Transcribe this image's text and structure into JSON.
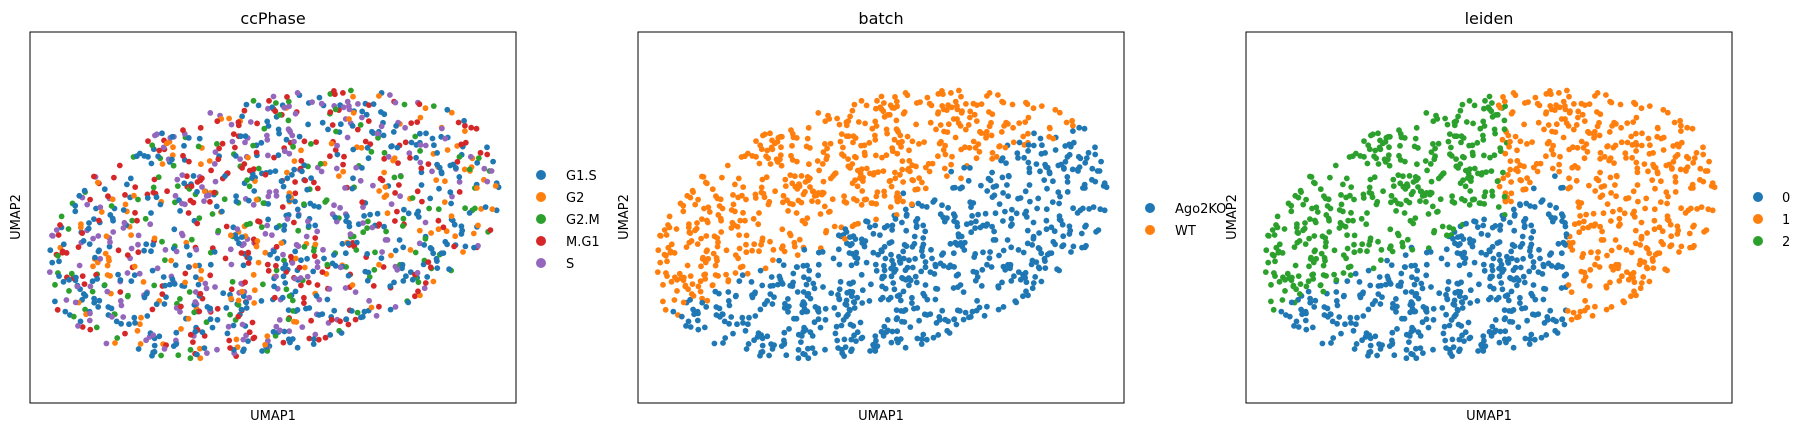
{
  "chart_data": [
    {
      "type": "scatter",
      "title": "ccPhase",
      "xlabel": "UMAP1",
      "ylabel": "UMAP2",
      "grid": false,
      "ticks": false,
      "legend_position": "right",
      "series": [
        {
          "name": "G1.S",
          "color": "#1f77b4"
        },
        {
          "name": "G2",
          "color": "#ff7f0e"
        },
        {
          "name": "G2.M",
          "color": "#2ca02c"
        },
        {
          "name": "M.G1",
          "color": "#d62728"
        },
        {
          "name": "S",
          "color": "#9467bd"
        }
      ],
      "point_assignment": "mixed",
      "mix_weights": [
        0.36,
        0.12,
        0.14,
        0.2,
        0.18
      ]
    },
    {
      "type": "scatter",
      "title": "batch",
      "xlabel": "UMAP1",
      "ylabel": "UMAP2",
      "grid": false,
      "ticks": false,
      "legend_position": "right",
      "series": [
        {
          "name": "Ago2KO",
          "color": "#1f77b4"
        },
        {
          "name": "WT",
          "color": "#ff7f0e"
        }
      ],
      "point_assignment": "batch_split"
    },
    {
      "type": "scatter",
      "title": "leiden",
      "xlabel": "UMAP1",
      "ylabel": "UMAP2",
      "grid": false,
      "ticks": false,
      "legend_position": "right",
      "series": [
        {
          "name": "0",
          "color": "#1f77b4"
        },
        {
          "name": "1",
          "color": "#ff7f0e"
        },
        {
          "name": "2",
          "color": "#2ca02c"
        }
      ],
      "point_assignment": "leiden_regions"
    }
  ]
}
